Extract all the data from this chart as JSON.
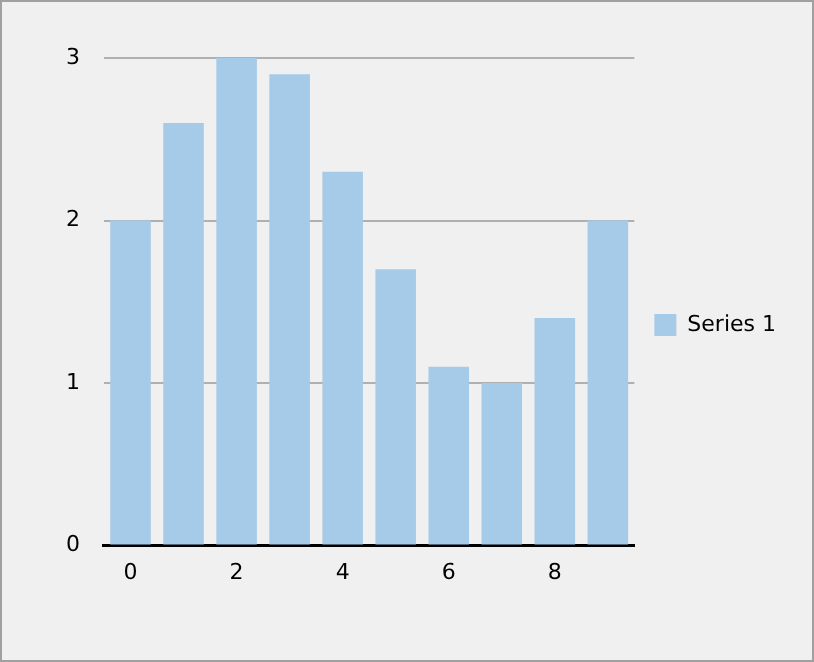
{
  "chart_data": {
    "type": "bar",
    "categories": [
      "0",
      null,
      "2",
      null,
      "4",
      null,
      "6",
      null,
      "8",
      null
    ],
    "series": [
      {
        "name": "Series 1",
        "color": "#a6cbe9",
        "values": [
          2,
          2.6,
          3,
          2.9,
          2.3,
          1.7,
          1.1,
          1.0,
          1.4,
          2.0
        ]
      }
    ],
    "ylim": [
      0,
      3
    ],
    "yticks": [
      0,
      1,
      2,
      3
    ],
    "grid": "y",
    "legend": "right"
  }
}
